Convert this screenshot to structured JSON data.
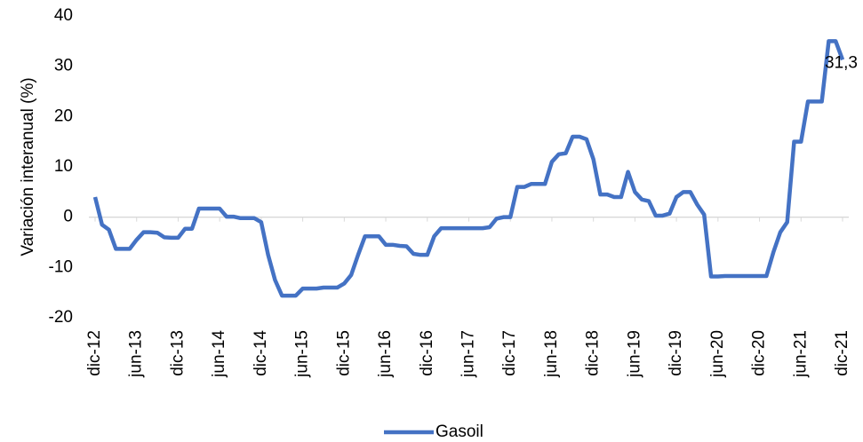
{
  "chart_data": {
    "type": "line",
    "ylabel": "Variación interanual (%)",
    "categories": [
      "dic-12",
      null,
      null,
      null,
      null,
      null,
      "jun-13",
      null,
      null,
      null,
      null,
      null,
      "dic-13",
      null,
      null,
      null,
      null,
      null,
      "jun-14",
      null,
      null,
      null,
      null,
      null,
      "dic-14",
      null,
      null,
      null,
      null,
      null,
      "jun-15",
      null,
      null,
      null,
      null,
      null,
      "dic-15",
      null,
      null,
      null,
      null,
      null,
      "jun-16",
      null,
      null,
      null,
      null,
      null,
      "dic-16",
      null,
      null,
      null,
      null,
      null,
      "jun-17",
      null,
      null,
      null,
      null,
      null,
      "dic-17",
      null,
      null,
      null,
      null,
      null,
      "jun-18",
      null,
      null,
      null,
      null,
      null,
      "dic-18",
      null,
      null,
      null,
      null,
      null,
      "jun-19",
      null,
      null,
      null,
      null,
      null,
      "dic-19",
      null,
      null,
      null,
      null,
      null,
      "jun-20",
      null,
      null,
      null,
      null,
      null,
      "dic-20",
      null,
      null,
      null,
      null,
      null,
      "jun-21",
      null,
      null,
      null,
      null,
      null,
      "dic-21"
    ],
    "series": [
      {
        "name": "Gasoil",
        "color": "#4472c4",
        "values": [
          4.0,
          -1.5,
          -2.5,
          -6.3,
          -6.3,
          -6.3,
          -4.5,
          -3.0,
          -3.0,
          -3.1,
          -4.0,
          -4.1,
          -4.1,
          -2.3,
          -2.3,
          1.7,
          1.7,
          1.7,
          1.7,
          0.1,
          0.1,
          -0.2,
          -0.2,
          -0.2,
          -1.0,
          -7.5,
          -12.5,
          -15.6,
          -15.6,
          -15.6,
          -14.2,
          -14.2,
          -14.2,
          -14.0,
          -14.0,
          -14.0,
          -13.2,
          -11.5,
          -7.5,
          -3.8,
          -3.8,
          -3.8,
          -5.5,
          -5.5,
          -5.7,
          -5.8,
          -7.3,
          -7.5,
          -7.5,
          -3.8,
          -2.2,
          -2.2,
          -2.2,
          -2.2,
          -2.2,
          -2.2,
          -2.2,
          -2.0,
          -0.3,
          0.0,
          0.0,
          6.0,
          6.0,
          6.6,
          6.6,
          6.6,
          11.0,
          12.5,
          12.7,
          16.0,
          16.0,
          15.5,
          11.5,
          4.5,
          4.5,
          4.0,
          4.0,
          9.0,
          5.0,
          3.5,
          3.2,
          0.3,
          0.3,
          0.7,
          4.0,
          5.0,
          5.0,
          2.5,
          0.5,
          -11.8,
          -11.8,
          -11.7,
          -11.7,
          -11.7,
          -11.7,
          -11.7,
          -11.7,
          -11.7,
          -7.0,
          -3.0,
          -1.0,
          15.0,
          15.0,
          23.0,
          23.0,
          23.0,
          35.0,
          35.0,
          31.3
        ],
        "value_labels": [
          null,
          null,
          null,
          null,
          null,
          null,
          null,
          null,
          null,
          null,
          null,
          null,
          null,
          null,
          null,
          null,
          null,
          null,
          null,
          null,
          null,
          null,
          null,
          null,
          null,
          null,
          null,
          null,
          null,
          null,
          null,
          null,
          null,
          null,
          null,
          null,
          null,
          null,
          null,
          null,
          null,
          null,
          null,
          null,
          null,
          null,
          null,
          null,
          null,
          null,
          null,
          null,
          null,
          null,
          null,
          null,
          null,
          null,
          null,
          null,
          null,
          null,
          null,
          null,
          null,
          null,
          null,
          null,
          null,
          null,
          null,
          null,
          null,
          null,
          null,
          null,
          null,
          null,
          null,
          null,
          null,
          null,
          null,
          null,
          null,
          null,
          null,
          null,
          null,
          null,
          null,
          null,
          null,
          null,
          null,
          null,
          null,
          null,
          null,
          null,
          null,
          null,
          null,
          null,
          null,
          null,
          null,
          null,
          "31,3"
        ]
      }
    ],
    "ylim": [
      -20,
      40
    ],
    "yticks": [
      -20,
      -10,
      0,
      10,
      20,
      30,
      40
    ],
    "grid": false,
    "legend": "bottom"
  }
}
